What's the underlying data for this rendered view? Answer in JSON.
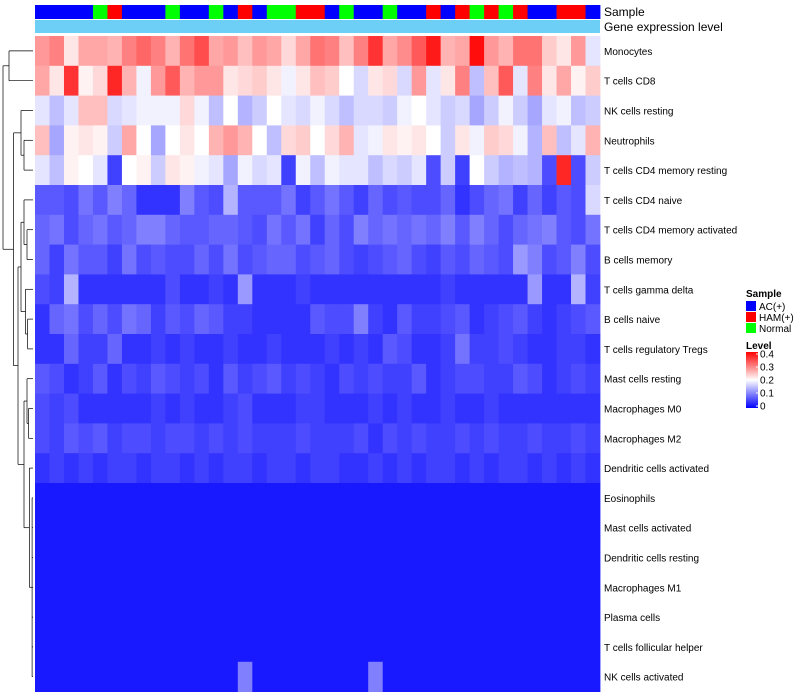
{
  "chart_data": {
    "type": "heatmap",
    "annotation_labels": {
      "sample": "Sample",
      "gene_expression": "Gene expression level"
    },
    "rows": [
      "Monocytes",
      "T cells CD8",
      "NK cells resting",
      "Neutrophils",
      "T cells CD4 memory resting",
      "T cells CD4 naive",
      "T cells CD4 memory activated",
      "B cells memory",
      "T cells gamma delta",
      "B cells naive",
      "T cells regulatory  Tregs",
      "Mast cells resting",
      "Macrophages M0",
      "Macrophages M2",
      "Dendritic cells activated",
      "Eosinophils",
      "Mast cells activated",
      "Dendritic cells resting",
      "Macrophages M1",
      "Plasma cells",
      "T cells follicular helper",
      "NK cells activated"
    ],
    "sample_groups": [
      "AC(+)",
      "AC(+)",
      "AC(+)",
      "AC(+)",
      "Normal",
      "HAM(+)",
      "AC(+)",
      "AC(+)",
      "AC(+)",
      "Normal",
      "AC(+)",
      "AC(+)",
      "Normal",
      "AC(+)",
      "HAM(+)",
      "AC(+)",
      "Normal",
      "Normal",
      "HAM(+)",
      "HAM(+)",
      "AC(+)",
      "Normal",
      "AC(+)",
      "AC(+)",
      "Normal",
      "AC(+)",
      "AC(+)",
      "HAM(+)",
      "AC(+)",
      "HAM(+)",
      "Normal",
      "HAM(+)",
      "Normal",
      "HAM(+)",
      "AC(+)",
      "AC(+)",
      "HAM(+)",
      "HAM(+)",
      "AC(+)"
    ],
    "values": [
      [
        0.28,
        0.3,
        0.22,
        0.27,
        0.27,
        0.26,
        0.3,
        0.32,
        0.3,
        0.26,
        0.31,
        0.34,
        0.27,
        0.28,
        0.25,
        0.28,
        0.27,
        0.23,
        0.27,
        0.31,
        0.3,
        0.25,
        0.3,
        0.36,
        0.27,
        0.29,
        0.33,
        0.38,
        0.26,
        0.27,
        0.39,
        0.28,
        0.26,
        0.31,
        0.31,
        0.24,
        0.22,
        0.28,
        0.18
      ],
      [
        0.27,
        0.22,
        0.36,
        0.21,
        0.23,
        0.37,
        0.26,
        0.19,
        0.28,
        0.33,
        0.26,
        0.28,
        0.28,
        0.22,
        0.23,
        0.24,
        0.22,
        0.19,
        0.22,
        0.25,
        0.24,
        0.2,
        0.17,
        0.22,
        0.23,
        0.17,
        0.28,
        0.18,
        0.22,
        0.3,
        0.15,
        0.25,
        0.33,
        0.18,
        0.3,
        0.22,
        0.27,
        0.21,
        0.24
      ],
      [
        0.18,
        0.15,
        0.18,
        0.25,
        0.25,
        0.17,
        0.18,
        0.19,
        0.19,
        0.19,
        0.23,
        0.19,
        0.15,
        0.2,
        0.14,
        0.16,
        0.2,
        0.18,
        0.17,
        0.19,
        0.17,
        0.15,
        0.17,
        0.17,
        0.16,
        0.19,
        0.2,
        0.18,
        0.16,
        0.17,
        0.13,
        0.16,
        0.19,
        0.16,
        0.13,
        0.18,
        0.19,
        0.15,
        0.16
      ],
      [
        0.25,
        0.13,
        0.21,
        0.22,
        0.21,
        0.16,
        0.27,
        0.2,
        0.13,
        0.2,
        0.22,
        0.2,
        0.26,
        0.28,
        0.26,
        0.2,
        0.15,
        0.23,
        0.24,
        0.2,
        0.23,
        0.26,
        0.18,
        0.19,
        0.22,
        0.21,
        0.22,
        0.2,
        0.16,
        0.22,
        0.19,
        0.24,
        0.23,
        0.19,
        0.14,
        0.25,
        0.15,
        0.18,
        0.26
      ],
      [
        0.18,
        0.15,
        0.21,
        0.2,
        0.18,
        0.05,
        0.2,
        0.21,
        0.16,
        0.22,
        0.21,
        0.19,
        0.18,
        0.13,
        0.19,
        0.17,
        0.18,
        0.05,
        0.19,
        0.15,
        0.19,
        0.18,
        0.18,
        0.15,
        0.17,
        0.16,
        0.18,
        0.06,
        0.16,
        0.05,
        0.2,
        0.16,
        0.14,
        0.15,
        0.14,
        0.06,
        0.37,
        0.06,
        0.16
      ],
      [
        0.07,
        0.07,
        0.06,
        0.09,
        0.07,
        0.1,
        0.08,
        0.04,
        0.04,
        0.04,
        0.1,
        0.07,
        0.06,
        0.14,
        0.07,
        0.07,
        0.07,
        0.09,
        0.05,
        0.07,
        0.09,
        0.07,
        0.05,
        0.08,
        0.06,
        0.07,
        0.06,
        0.06,
        0.08,
        0.04,
        0.06,
        0.08,
        0.09,
        0.05,
        0.08,
        0.05,
        0.07,
        0.06,
        0.17
      ],
      [
        0.08,
        0.09,
        0.06,
        0.08,
        0.09,
        0.07,
        0.08,
        0.1,
        0.1,
        0.08,
        0.07,
        0.07,
        0.08,
        0.08,
        0.07,
        0.06,
        0.09,
        0.07,
        0.09,
        0.05,
        0.08,
        0.06,
        0.1,
        0.08,
        0.09,
        0.08,
        0.09,
        0.08,
        0.1,
        0.07,
        0.1,
        0.08,
        0.06,
        0.08,
        0.09,
        0.1,
        0.07,
        0.06,
        0.09
      ],
      [
        0.08,
        0.05,
        0.09,
        0.07,
        0.07,
        0.05,
        0.09,
        0.06,
        0.07,
        0.06,
        0.06,
        0.08,
        0.06,
        0.09,
        0.06,
        0.07,
        0.08,
        0.08,
        0.06,
        0.07,
        0.08,
        0.06,
        0.05,
        0.06,
        0.07,
        0.08,
        0.06,
        0.05,
        0.07,
        0.06,
        0.08,
        0.07,
        0.06,
        0.12,
        0.1,
        0.06,
        0.07,
        0.1,
        0.06
      ],
      [
        0.06,
        0.05,
        0.14,
        0.04,
        0.04,
        0.04,
        0.04,
        0.04,
        0.04,
        0.06,
        0.04,
        0.04,
        0.05,
        0.04,
        0.12,
        0.04,
        0.04,
        0.04,
        0.05,
        0.04,
        0.04,
        0.04,
        0.04,
        0.04,
        0.04,
        0.04,
        0.04,
        0.04,
        0.05,
        0.04,
        0.04,
        0.04,
        0.04,
        0.04,
        0.12,
        0.04,
        0.04,
        0.14,
        0.05
      ],
      [
        0.04,
        0.08,
        0.09,
        0.06,
        0.08,
        0.06,
        0.09,
        0.08,
        0.05,
        0.07,
        0.06,
        0.08,
        0.07,
        0.05,
        0.05,
        0.04,
        0.04,
        0.04,
        0.04,
        0.07,
        0.06,
        0.06,
        0.1,
        0.05,
        0.04,
        0.07,
        0.05,
        0.05,
        0.06,
        0.07,
        0.04,
        0.05,
        0.06,
        0.07,
        0.05,
        0.04,
        0.05,
        0.06,
        0.07
      ],
      [
        0.04,
        0.04,
        0.08,
        0.05,
        0.05,
        0.08,
        0.04,
        0.04,
        0.05,
        0.04,
        0.05,
        0.04,
        0.04,
        0.05,
        0.04,
        0.04,
        0.05,
        0.04,
        0.04,
        0.04,
        0.05,
        0.04,
        0.05,
        0.04,
        0.07,
        0.06,
        0.04,
        0.04,
        0.05,
        0.09,
        0.05,
        0.05,
        0.06,
        0.05,
        0.04,
        0.04,
        0.05,
        0.05,
        0.04
      ],
      [
        0.07,
        0.06,
        0.04,
        0.05,
        0.07,
        0.04,
        0.06,
        0.05,
        0.07,
        0.06,
        0.05,
        0.06,
        0.04,
        0.07,
        0.05,
        0.06,
        0.07,
        0.05,
        0.06,
        0.05,
        0.04,
        0.06,
        0.05,
        0.06,
        0.05,
        0.05,
        0.07,
        0.04,
        0.05,
        0.06,
        0.06,
        0.05,
        0.05,
        0.07,
        0.06,
        0.04,
        0.05,
        0.06,
        0.05
      ],
      [
        0.06,
        0.05,
        0.06,
        0.04,
        0.04,
        0.04,
        0.04,
        0.04,
        0.05,
        0.04,
        0.05,
        0.04,
        0.04,
        0.05,
        0.06,
        0.04,
        0.04,
        0.04,
        0.05,
        0.05,
        0.04,
        0.04,
        0.04,
        0.05,
        0.04,
        0.05,
        0.04,
        0.04,
        0.05,
        0.04,
        0.04,
        0.05,
        0.04,
        0.04,
        0.04,
        0.04,
        0.04,
        0.04,
        0.04
      ],
      [
        0.06,
        0.05,
        0.07,
        0.06,
        0.07,
        0.05,
        0.06,
        0.06,
        0.05,
        0.06,
        0.06,
        0.05,
        0.06,
        0.05,
        0.06,
        0.05,
        0.05,
        0.05,
        0.06,
        0.05,
        0.05,
        0.05,
        0.06,
        0.04,
        0.06,
        0.05,
        0.06,
        0.05,
        0.05,
        0.06,
        0.05,
        0.06,
        0.05,
        0.05,
        0.06,
        0.05,
        0.05,
        0.06,
        0.05
      ],
      [
        0.04,
        0.05,
        0.04,
        0.05,
        0.04,
        0.05,
        0.05,
        0.04,
        0.05,
        0.05,
        0.04,
        0.05,
        0.04,
        0.05,
        0.05,
        0.04,
        0.05,
        0.05,
        0.04,
        0.05,
        0.05,
        0.04,
        0.04,
        0.05,
        0.04,
        0.05,
        0.04,
        0.05,
        0.05,
        0.04,
        0.05,
        0.04,
        0.05,
        0.05,
        0.04,
        0.05,
        0.04,
        0.05,
        0.04
      ],
      [
        0.02,
        0.02,
        0.02,
        0.02,
        0.02,
        0.02,
        0.02,
        0.02,
        0.02,
        0.02,
        0.02,
        0.02,
        0.02,
        0.02,
        0.02,
        0.02,
        0.02,
        0.02,
        0.02,
        0.02,
        0.02,
        0.02,
        0.02,
        0.02,
        0.02,
        0.02,
        0.02,
        0.02,
        0.02,
        0.02,
        0.02,
        0.02,
        0.02,
        0.02,
        0.02,
        0.02,
        0.02,
        0.02,
        0.02
      ],
      [
        0.02,
        0.02,
        0.02,
        0.02,
        0.02,
        0.02,
        0.02,
        0.02,
        0.02,
        0.02,
        0.02,
        0.02,
        0.02,
        0.02,
        0.02,
        0.02,
        0.02,
        0.02,
        0.02,
        0.02,
        0.02,
        0.02,
        0.02,
        0.02,
        0.02,
        0.02,
        0.02,
        0.02,
        0.02,
        0.02,
        0.02,
        0.02,
        0.02,
        0.02,
        0.02,
        0.02,
        0.02,
        0.02,
        0.02
      ],
      [
        0.02,
        0.02,
        0.02,
        0.02,
        0.02,
        0.02,
        0.02,
        0.02,
        0.02,
        0.02,
        0.02,
        0.02,
        0.02,
        0.02,
        0.02,
        0.02,
        0.02,
        0.02,
        0.02,
        0.02,
        0.02,
        0.02,
        0.02,
        0.02,
        0.02,
        0.02,
        0.02,
        0.02,
        0.02,
        0.02,
        0.02,
        0.02,
        0.02,
        0.02,
        0.02,
        0.02,
        0.02,
        0.02,
        0.02
      ],
      [
        0.02,
        0.02,
        0.02,
        0.02,
        0.02,
        0.02,
        0.02,
        0.02,
        0.02,
        0.02,
        0.02,
        0.02,
        0.02,
        0.02,
        0.02,
        0.02,
        0.02,
        0.02,
        0.02,
        0.02,
        0.02,
        0.02,
        0.02,
        0.02,
        0.02,
        0.02,
        0.02,
        0.02,
        0.02,
        0.02,
        0.02,
        0.02,
        0.02,
        0.02,
        0.02,
        0.02,
        0.02,
        0.02,
        0.02
      ],
      [
        0.02,
        0.02,
        0.02,
        0.02,
        0.02,
        0.02,
        0.02,
        0.02,
        0.02,
        0.02,
        0.02,
        0.02,
        0.02,
        0.02,
        0.02,
        0.02,
        0.02,
        0.02,
        0.02,
        0.02,
        0.02,
        0.02,
        0.02,
        0.02,
        0.02,
        0.02,
        0.02,
        0.02,
        0.02,
        0.02,
        0.02,
        0.02,
        0.02,
        0.02,
        0.02,
        0.02,
        0.02,
        0.02,
        0.02
      ],
      [
        0.02,
        0.02,
        0.02,
        0.02,
        0.02,
        0.02,
        0.02,
        0.02,
        0.02,
        0.02,
        0.02,
        0.02,
        0.02,
        0.02,
        0.02,
        0.02,
        0.02,
        0.02,
        0.02,
        0.02,
        0.02,
        0.02,
        0.02,
        0.02,
        0.02,
        0.02,
        0.02,
        0.02,
        0.02,
        0.02,
        0.02,
        0.02,
        0.02,
        0.02,
        0.02,
        0.02,
        0.02,
        0.02,
        0.02
      ],
      [
        0.02,
        0.02,
        0.02,
        0.02,
        0.02,
        0.02,
        0.02,
        0.02,
        0.02,
        0.02,
        0.02,
        0.02,
        0.02,
        0.02,
        0.1,
        0.02,
        0.02,
        0.02,
        0.02,
        0.02,
        0.02,
        0.02,
        0.02,
        0.1,
        0.02,
        0.02,
        0.02,
        0.02,
        0.02,
        0.02,
        0.02,
        0.02,
        0.02,
        0.02,
        0.02,
        0.02,
        0.02,
        0.02,
        0.02
      ]
    ],
    "legend_sample": {
      "title": "Sample",
      "items": [
        {
          "label": "AC(+)",
          "color": "#0000ff"
        },
        {
          "label": "HAM(+)",
          "color": "#ff0000"
        },
        {
          "label": "Normal",
          "color": "#00ff00"
        }
      ]
    },
    "legend_level": {
      "title": "Level",
      "ticks": [
        "0.4",
        "0.3",
        "0.2",
        "0.1",
        "0"
      ],
      "range": [
        0,
        0.4
      ]
    },
    "colors": {
      "low": "#0000ff",
      "mid": "#ffffff",
      "high": "#ff0000",
      "gene_bar": "#6dcff6"
    }
  }
}
